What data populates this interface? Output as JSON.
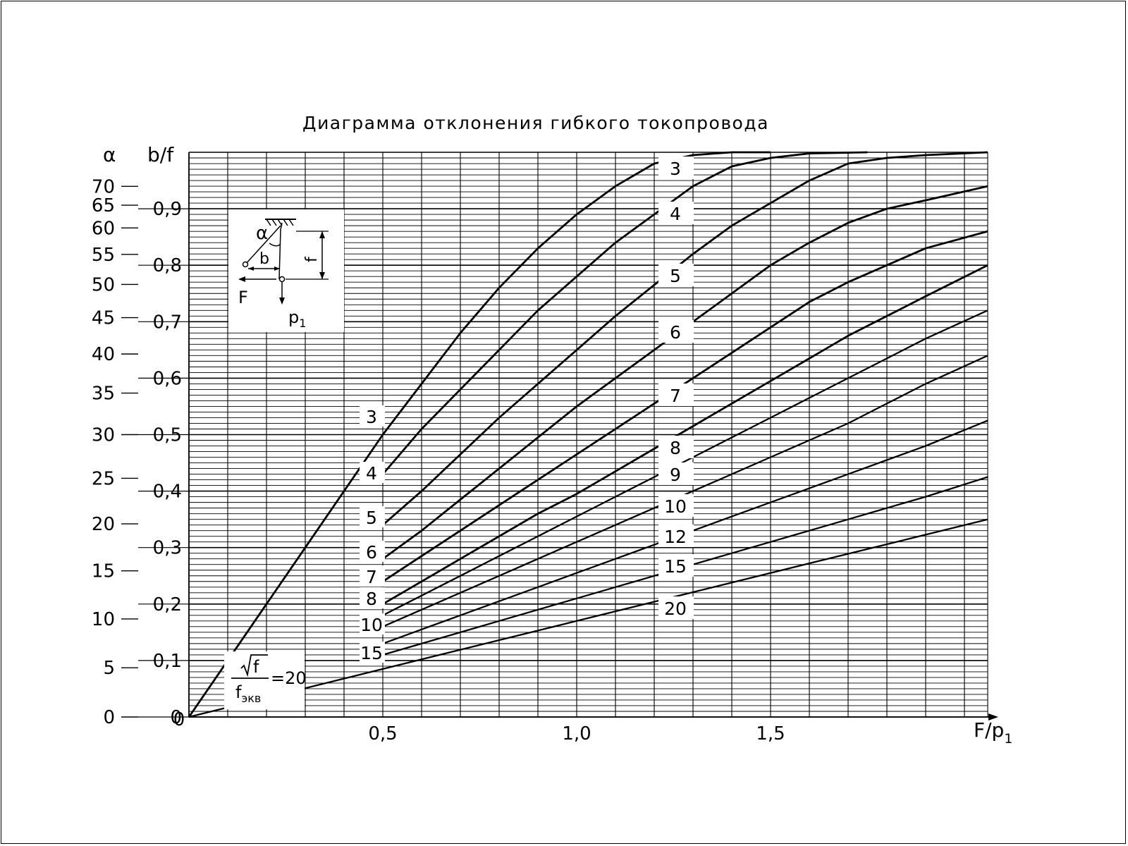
{
  "chart_data": {
    "type": "line",
    "title": "Диаграмма отклонения гибкого токопровода",
    "xlabel": "F/p",
    "xlabel_sub": "1",
    "ylabel_left": "α",
    "ylabel_right": "b/f",
    "xlim": [
      0,
      2.06
    ],
    "ylim": [
      0,
      1.0
    ],
    "grid": true,
    "x_ticks": [
      {
        "value": 0,
        "label": "0"
      },
      {
        "value": 0.5,
        "label": "0,5"
      },
      {
        "value": 1.0,
        "label": "1,0"
      },
      {
        "value": 1.5,
        "label": "1,5"
      }
    ],
    "y_ticks": [
      {
        "value": 0,
        "label": "0"
      },
      {
        "value": 0.1,
        "label": "0,1"
      },
      {
        "value": 0.2,
        "label": "0,2"
      },
      {
        "value": 0.3,
        "label": "0,3"
      },
      {
        "value": 0.4,
        "label": "0,4"
      },
      {
        "value": 0.5,
        "label": "0,5"
      },
      {
        "value": 0.6,
        "label": "0,6"
      },
      {
        "value": 0.7,
        "label": "0,7"
      },
      {
        "value": 0.8,
        "label": "0,8"
      },
      {
        "value": 0.9,
        "label": "0,9"
      }
    ],
    "alpha_ticks": [
      {
        "value": 0,
        "label": "0"
      },
      {
        "value": 5,
        "label": "5"
      },
      {
        "value": 10,
        "label": "10"
      },
      {
        "value": 15,
        "label": "15"
      },
      {
        "value": 20,
        "label": "20"
      },
      {
        "value": 25,
        "label": "25"
      },
      {
        "value": 30,
        "label": "30"
      },
      {
        "value": 35,
        "label": "35"
      },
      {
        "value": 40,
        "label": "40"
      },
      {
        "value": 45,
        "label": "45"
      },
      {
        "value": 50,
        "label": "50"
      },
      {
        "value": 55,
        "label": "55"
      },
      {
        "value": 60,
        "label": "60"
      },
      {
        "value": 65,
        "label": "65"
      },
      {
        "value": 70,
        "label": "70"
      }
    ],
    "series": [
      {
        "name": "3",
        "points": [
          [
            0,
            0
          ],
          [
            0.1,
            0.1
          ],
          [
            0.2,
            0.2
          ],
          [
            0.3,
            0.3
          ],
          [
            0.4,
            0.4
          ],
          [
            0.5,
            0.5
          ],
          [
            0.6,
            0.59
          ],
          [
            0.7,
            0.68
          ],
          [
            0.8,
            0.76
          ],
          [
            0.9,
            0.83
          ],
          [
            1.0,
            0.89
          ],
          [
            1.1,
            0.94
          ],
          [
            1.2,
            0.98
          ],
          [
            1.3,
            0.995
          ],
          [
            1.4,
            1.0
          ],
          [
            1.5,
            1.0
          ]
        ]
      },
      {
        "name": "4",
        "points": [
          [
            0.5,
            0.43
          ],
          [
            0.6,
            0.51
          ],
          [
            0.7,
            0.58
          ],
          [
            0.8,
            0.65
          ],
          [
            0.9,
            0.72
          ],
          [
            1.0,
            0.78
          ],
          [
            1.1,
            0.84
          ],
          [
            1.2,
            0.89
          ],
          [
            1.3,
            0.94
          ],
          [
            1.4,
            0.975
          ],
          [
            1.5,
            0.99
          ],
          [
            1.6,
            0.998
          ],
          [
            1.75,
            1.0
          ]
        ]
      },
      {
        "name": "5",
        "points": [
          [
            0.5,
            0.34
          ],
          [
            0.6,
            0.4
          ],
          [
            0.7,
            0.465
          ],
          [
            0.8,
            0.53
          ],
          [
            0.9,
            0.59
          ],
          [
            1.0,
            0.65
          ],
          [
            1.1,
            0.71
          ],
          [
            1.2,
            0.765
          ],
          [
            1.3,
            0.82
          ],
          [
            1.4,
            0.87
          ],
          [
            1.5,
            0.91
          ],
          [
            1.6,
            0.95
          ],
          [
            1.7,
            0.98
          ],
          [
            1.8,
            0.99
          ],
          [
            1.9,
            0.995
          ],
          [
            2.06,
            1.0
          ]
        ]
      },
      {
        "name": "6",
        "points": [
          [
            0.5,
            0.28
          ],
          [
            0.6,
            0.33
          ],
          [
            0.7,
            0.385
          ],
          [
            0.8,
            0.44
          ],
          [
            0.9,
            0.495
          ],
          [
            1.0,
            0.55
          ],
          [
            1.1,
            0.6
          ],
          [
            1.2,
            0.65
          ],
          [
            1.3,
            0.7
          ],
          [
            1.4,
            0.75
          ],
          [
            1.5,
            0.8
          ],
          [
            1.6,
            0.84
          ],
          [
            1.7,
            0.875
          ],
          [
            1.8,
            0.9
          ],
          [
            1.9,
            0.915
          ],
          [
            2.06,
            0.94
          ]
        ]
      },
      {
        "name": "7",
        "points": [
          [
            0.5,
            0.24
          ],
          [
            0.6,
            0.285
          ],
          [
            0.7,
            0.33
          ],
          [
            0.8,
            0.375
          ],
          [
            0.9,
            0.42
          ],
          [
            1.0,
            0.465
          ],
          [
            1.1,
            0.51
          ],
          [
            1.2,
            0.555
          ],
          [
            1.3,
            0.6
          ],
          [
            1.4,
            0.645
          ],
          [
            1.5,
            0.69
          ],
          [
            1.6,
            0.735
          ],
          [
            1.7,
            0.77
          ],
          [
            1.8,
            0.8
          ],
          [
            1.9,
            0.83
          ],
          [
            2.06,
            0.86
          ]
        ]
      },
      {
        "name": "8",
        "points": [
          [
            0.5,
            0.2
          ],
          [
            0.6,
            0.24
          ],
          [
            0.7,
            0.28
          ],
          [
            0.8,
            0.32
          ],
          [
            0.9,
            0.36
          ],
          [
            1.0,
            0.395
          ],
          [
            1.1,
            0.435
          ],
          [
            1.2,
            0.475
          ],
          [
            1.3,
            0.515
          ],
          [
            1.4,
            0.555
          ],
          [
            1.5,
            0.595
          ],
          [
            1.6,
            0.635
          ],
          [
            1.7,
            0.675
          ],
          [
            1.8,
            0.71
          ],
          [
            1.9,
            0.745
          ],
          [
            2.06,
            0.8
          ]
        ]
      },
      {
        "name": "9",
        "points": [
          [
            0.5,
            0.18
          ],
          [
            0.6,
            0.215
          ],
          [
            0.7,
            0.25
          ],
          [
            0.8,
            0.285
          ],
          [
            0.9,
            0.32
          ],
          [
            1.0,
            0.355
          ],
          [
            1.1,
            0.39
          ],
          [
            1.2,
            0.425
          ],
          [
            1.3,
            0.46
          ],
          [
            1.4,
            0.495
          ],
          [
            1.5,
            0.53
          ],
          [
            1.6,
            0.565
          ],
          [
            1.7,
            0.6
          ],
          [
            1.8,
            0.635
          ],
          [
            1.9,
            0.67
          ],
          [
            2.06,
            0.72
          ]
        ]
      },
      {
        "name": "10",
        "points": [
          [
            0.5,
            0.16
          ],
          [
            0.6,
            0.19
          ],
          [
            0.7,
            0.22
          ],
          [
            0.8,
            0.25
          ],
          [
            0.9,
            0.28
          ],
          [
            1.0,
            0.31
          ],
          [
            1.1,
            0.34
          ],
          [
            1.2,
            0.37
          ],
          [
            1.3,
            0.4
          ],
          [
            1.4,
            0.43
          ],
          [
            1.5,
            0.46
          ],
          [
            1.6,
            0.49
          ],
          [
            1.7,
            0.52
          ],
          [
            1.8,
            0.555
          ],
          [
            1.9,
            0.59
          ],
          [
            2.06,
            0.64
          ]
        ]
      },
      {
        "name": "12",
        "points": [
          [
            0.5,
            0.13
          ],
          [
            0.6,
            0.155
          ],
          [
            0.7,
            0.18
          ],
          [
            0.8,
            0.205
          ],
          [
            0.9,
            0.23
          ],
          [
            1.0,
            0.255
          ],
          [
            1.1,
            0.28
          ],
          [
            1.2,
            0.305
          ],
          [
            1.3,
            0.33
          ],
          [
            1.4,
            0.355
          ],
          [
            1.5,
            0.38
          ],
          [
            1.6,
            0.405
          ],
          [
            1.7,
            0.43
          ],
          [
            1.8,
            0.455
          ],
          [
            1.9,
            0.48
          ],
          [
            2.06,
            0.525
          ]
        ]
      },
      {
        "name": "15",
        "points": [
          [
            0.5,
            0.11
          ],
          [
            0.6,
            0.13
          ],
          [
            0.7,
            0.15
          ],
          [
            0.8,
            0.17
          ],
          [
            0.9,
            0.19
          ],
          [
            1.0,
            0.21
          ],
          [
            1.1,
            0.23
          ],
          [
            1.2,
            0.25
          ],
          [
            1.3,
            0.27
          ],
          [
            1.4,
            0.29
          ],
          [
            1.5,
            0.31
          ],
          [
            1.6,
            0.33
          ],
          [
            1.7,
            0.35
          ],
          [
            1.8,
            0.37
          ],
          [
            1.9,
            0.39
          ],
          [
            2.06,
            0.425
          ]
        ]
      },
      {
        "name": "20",
        "points": [
          [
            0,
            0
          ],
          [
            0.5,
            0.085
          ],
          [
            1.0,
            0.17
          ],
          [
            1.5,
            0.255
          ],
          [
            2.06,
            0.35
          ]
        ]
      }
    ],
    "curve_labels_right": [
      "3",
      "4",
      "5",
      "6",
      "7",
      "8",
      "9",
      "10",
      "12",
      "15",
      "20"
    ],
    "curve_labels_left": [
      "3",
      "4",
      "5",
      "6",
      "7",
      "8",
      "10",
      "15"
    ],
    "formula": {
      "numerator": "f",
      "denominator": "f",
      "denominator_sub": "экв",
      "value": "=20"
    },
    "inset": {
      "alpha": "α",
      "b": "b",
      "f": "f",
      "F": "F",
      "p": "p",
      "p_sub": "1"
    }
  }
}
